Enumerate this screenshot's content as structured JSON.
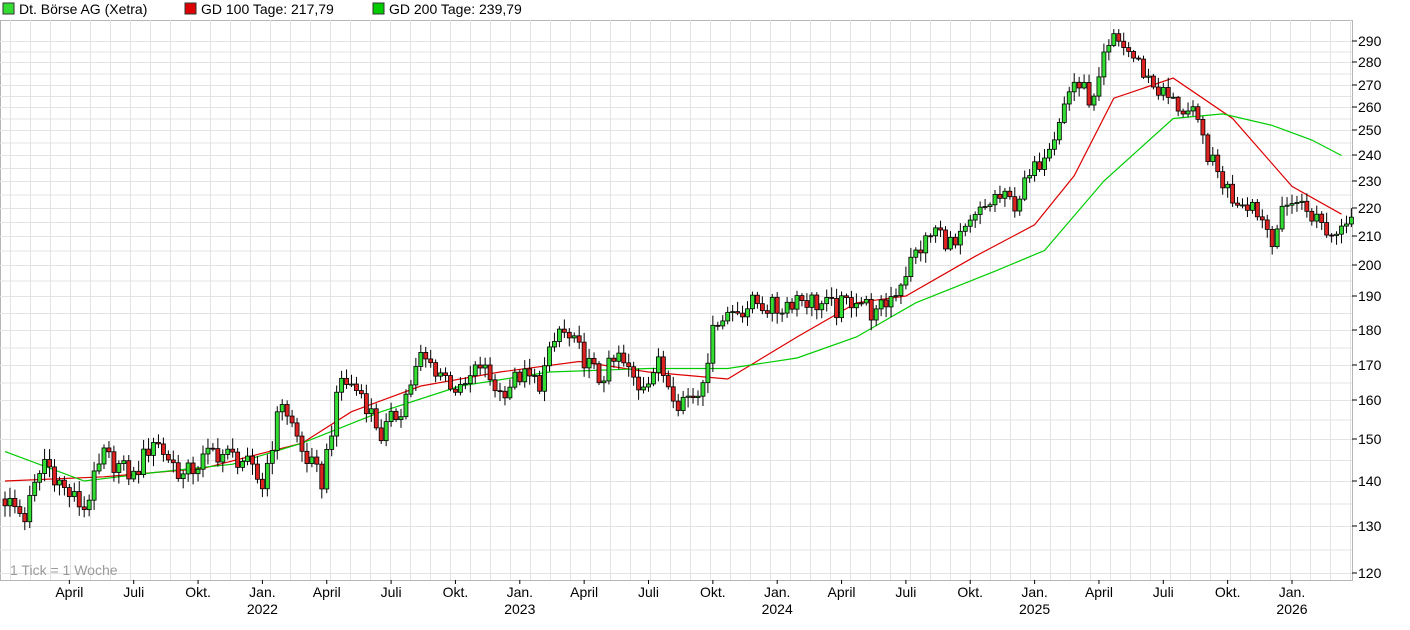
{
  "chart_data": {
    "type": "candlestick",
    "legend": [
      {
        "label": "Dt. Börse AG (Xetra)",
        "color": "#33dd33"
      },
      {
        "label": "GD 100 Tage: 217,79",
        "color": "#dd0000"
      },
      {
        "label": "GD 200 Tage: 239,79",
        "color": "#00cc00"
      }
    ],
    "note": "1 Tick = 1 Woche",
    "y_ticks": [
      120,
      130,
      140,
      150,
      160,
      170,
      180,
      190,
      200,
      210,
      220,
      230,
      240,
      250,
      260,
      270,
      280,
      290
    ],
    "x_ticks": [
      {
        "label": "April",
        "week": 13
      },
      {
        "label": "Juli",
        "week": 26
      },
      {
        "label": "Okt.",
        "week": 39
      },
      {
        "label": "Jan.",
        "week": 52
      },
      {
        "label": "April",
        "week": 65
      },
      {
        "label": "Juli",
        "week": 78
      },
      {
        "label": "Okt.",
        "week": 91
      },
      {
        "label": "Jan.",
        "week": 104
      },
      {
        "label": "April",
        "week": 117
      },
      {
        "label": "Juli",
        "week": 130
      },
      {
        "label": "Okt.",
        "week": 143
      },
      {
        "label": "Jan.",
        "week": 156
      },
      {
        "label": "April",
        "week": 169
      },
      {
        "label": "Juli",
        "week": 182
      },
      {
        "label": "Okt.",
        "week": 195
      },
      {
        "label": "Jan.",
        "week": 208
      },
      {
        "label": "April",
        "week": 221
      },
      {
        "label": "Juli",
        "week": 234
      },
      {
        "label": "Okt.",
        "week": 247
      },
      {
        "label": "Jan.",
        "week": 260
      }
    ],
    "year_labels": [
      {
        "label": "2022",
        "week": 52
      },
      {
        "label": "2023",
        "week": 104
      },
      {
        "label": "2024",
        "week": 156
      },
      {
        "label": "2025",
        "week": 208
      },
      {
        "label": "2026",
        "week": 260
      }
    ],
    "key_closes": [
      [
        0,
        136
      ],
      [
        4,
        132
      ],
      [
        8,
        145
      ],
      [
        12,
        138
      ],
      [
        16,
        134
      ],
      [
        20,
        146
      ],
      [
        26,
        141
      ],
      [
        30,
        150
      ],
      [
        36,
        141
      ],
      [
        42,
        147
      ],
      [
        48,
        145
      ],
      [
        52,
        139
      ],
      [
        56,
        160
      ],
      [
        60,
        147
      ],
      [
        64,
        140
      ],
      [
        68,
        166
      ],
      [
        72,
        162
      ],
      [
        76,
        151
      ],
      [
        80,
        158
      ],
      [
        84,
        172
      ],
      [
        88,
        168
      ],
      [
        92,
        162
      ],
      [
        96,
        170
      ],
      [
        100,
        162
      ],
      [
        104,
        167
      ],
      [
        108,
        165
      ],
      [
        112,
        180
      ],
      [
        116,
        174
      ],
      [
        120,
        166
      ],
      [
        124,
        172
      ],
      [
        128,
        164
      ],
      [
        132,
        170
      ],
      [
        136,
        160
      ],
      [
        140,
        162
      ],
      [
        144,
        184
      ],
      [
        148,
        186
      ],
      [
        152,
        188
      ],
      [
        156,
        186
      ],
      [
        160,
        190
      ],
      [
        164,
        188
      ],
      [
        168,
        186
      ],
      [
        172,
        190
      ],
      [
        176,
        184
      ],
      [
        180,
        192
      ],
      [
        184,
        204
      ],
      [
        188,
        212
      ],
      [
        192,
        206
      ],
      [
        196,
        216
      ],
      [
        200,
        224
      ],
      [
        204,
        222
      ],
      [
        208,
        234
      ],
      [
        212,
        250
      ],
      [
        216,
        272
      ],
      [
        220,
        262
      ],
      [
        222,
        280
      ],
      [
        224,
        290
      ],
      [
        226,
        288
      ],
      [
        228,
        282
      ],
      [
        232,
        270
      ],
      [
        236,
        262
      ],
      [
        240,
        256
      ],
      [
        244,
        236
      ],
      [
        248,
        224
      ],
      [
        252,
        222
      ],
      [
        256,
        210
      ],
      [
        260,
        224
      ],
      [
        264,
        218
      ],
      [
        268,
        210
      ],
      [
        270,
        214
      ],
      [
        272,
        220
      ]
    ],
    "moving_averages": [
      {
        "name": "GD 100 Tage",
        "color": "#dd0000",
        "points": [
          [
            0,
            140
          ],
          [
            20,
            141
          ],
          [
            40,
            143
          ],
          [
            60,
            149
          ],
          [
            70,
            157
          ],
          [
            84,
            164
          ],
          [
            100,
            168
          ],
          [
            116,
            171
          ],
          [
            130,
            168
          ],
          [
            146,
            166
          ],
          [
            160,
            178
          ],
          [
            172,
            188
          ],
          [
            182,
            190
          ],
          [
            196,
            203
          ],
          [
            208,
            214
          ],
          [
            216,
            232
          ],
          [
            224,
            264
          ],
          [
            236,
            273
          ],
          [
            248,
            255
          ],
          [
            260,
            228
          ],
          [
            270,
            217.8
          ]
        ]
      },
      {
        "name": "GD 200 Tage",
        "color": "#00cc00",
        "points": [
          [
            0,
            147
          ],
          [
            16,
            140
          ],
          [
            30,
            142
          ],
          [
            46,
            144
          ],
          [
            60,
            149
          ],
          [
            76,
            157
          ],
          [
            92,
            164
          ],
          [
            110,
            168
          ],
          [
            130,
            169
          ],
          [
            146,
            169
          ],
          [
            160,
            172
          ],
          [
            172,
            178
          ],
          [
            184,
            188
          ],
          [
            200,
            198
          ],
          [
            210,
            205
          ],
          [
            222,
            230
          ],
          [
            236,
            255
          ],
          [
            246,
            257
          ],
          [
            256,
            252
          ],
          [
            264,
            246
          ],
          [
            270,
            239.8
          ]
        ]
      }
    ]
  }
}
